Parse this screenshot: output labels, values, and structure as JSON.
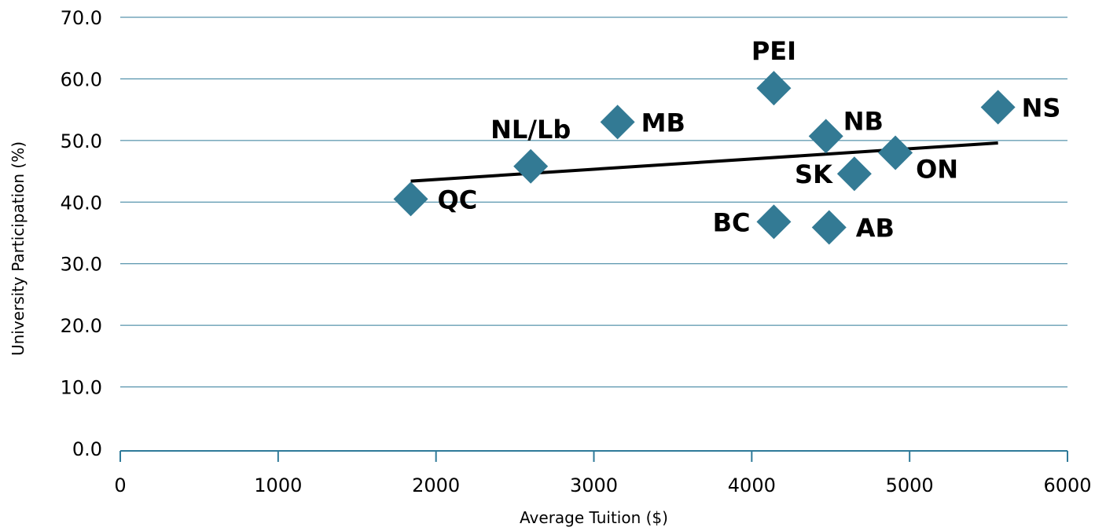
{
  "chart_data": {
    "type": "scatter",
    "title": "",
    "xlabel": "Average Tuition ($)",
    "ylabel": "University Participation (%)",
    "xlim": [
      0,
      6000
    ],
    "ylim": [
      0,
      70
    ],
    "x_ticks": [
      "0",
      "1000",
      "2000",
      "3000",
      "4000",
      "5000",
      "6000"
    ],
    "y_ticks": [
      "0.0",
      "10.0",
      "20.0",
      "30.0",
      "40.0",
      "50.0",
      "60.0",
      "70.0"
    ],
    "grid": "horizontal",
    "legend": "none",
    "marker_color": "#337a94",
    "grid_color": "#2f7a99",
    "trend_color": "#000000",
    "points": [
      {
        "label": "QC",
        "x": 1840,
        "y": 40.5
      },
      {
        "label": "NL/Lb",
        "x": 2600,
        "y": 45.8
      },
      {
        "label": "MB",
        "x": 3150,
        "y": 53.0
      },
      {
        "label": "PEI",
        "x": 4140,
        "y": 58.5
      },
      {
        "label": "BC",
        "x": 4140,
        "y": 36.8
      },
      {
        "label": "NB",
        "x": 4470,
        "y": 50.7
      },
      {
        "label": "AB",
        "x": 4490,
        "y": 35.9
      },
      {
        "label": "SK",
        "x": 4650,
        "y": 44.6
      },
      {
        "label": "ON",
        "x": 4910,
        "y": 48.0
      },
      {
        "label": "NS",
        "x": 5560,
        "y": 55.4
      }
    ],
    "trendline": {
      "x1": 1840,
      "y1": 43.4,
      "x2": 5560,
      "y2": 49.6
    }
  }
}
